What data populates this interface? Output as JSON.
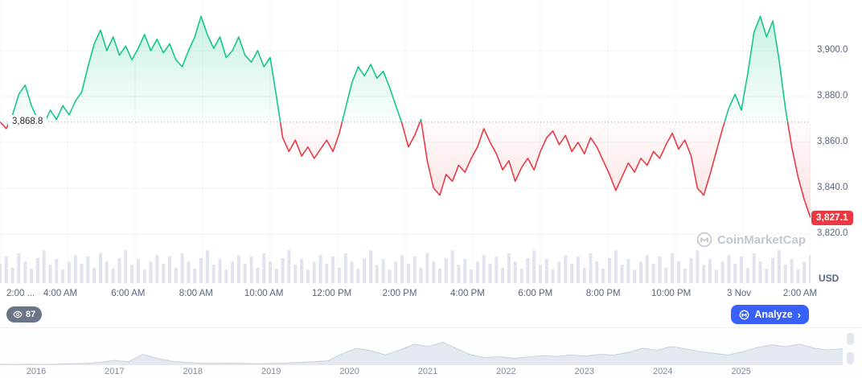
{
  "watermark": {
    "text": "CoinMarketCap"
  },
  "toolbar": {
    "watch_count": "87",
    "analyze_label": "Analyze",
    "analyze_chevron": "›",
    "analyze_color": "#3861fb"
  },
  "chart_data": {
    "type": "line",
    "title": "Intraday price chart with baseline (up/down shading), volume strip and 2016-2025 range timeline",
    "main": {
      "unit": "USD",
      "baseline": {
        "value": 3868.8,
        "label": "3,868.8"
      },
      "last": {
        "value": 3827.1,
        "label": "3,827.1"
      },
      "ylim": [
        3820,
        3900
      ],
      "grid": true,
      "colors": {
        "up": "#16c784",
        "down": "#ea3943",
        "volume": "#dfe4ee",
        "grid": "#eef1f6",
        "vgrid": "#f3f5f9",
        "baseline_dots": "#98a1b3"
      },
      "y_ticks": [
        {
          "label": "3,900.0",
          "value": 3900
        },
        {
          "label": "3,880.0",
          "value": 3880
        },
        {
          "label": "3,860.0",
          "value": 3860
        },
        {
          "label": "3,840.0",
          "value": 3840
        },
        {
          "label": "3,820.0",
          "value": 3820
        }
      ],
      "x_ticks": [
        "2:00 ...",
        "4:00 AM",
        "6:00 AM",
        "8:00 AM",
        "10:00 AM",
        "12:00 PM",
        "2:00 PM",
        "4:00 PM",
        "6:00 PM",
        "8:00 PM",
        "10:00 PM",
        "3 Nov",
        "2:00 AM"
      ],
      "prices": [
        3869,
        3866,
        3872,
        3881,
        3885,
        3876,
        3870,
        3868,
        3874,
        3870,
        3876,
        3872,
        3878,
        3882,
        3893,
        3903,
        3909,
        3900,
        3906,
        3898,
        3902,
        3896,
        3901,
        3907,
        3900,
        3905,
        3899,
        3903,
        3896,
        3893,
        3900,
        3906,
        3915,
        3907,
        3901,
        3906,
        3897,
        3900,
        3906,
        3898,
        3895,
        3900,
        3893,
        3897,
        3880,
        3862,
        3856,
        3861,
        3854,
        3858,
        3853,
        3857,
        3861,
        3856,
        3864,
        3875,
        3886,
        3893,
        3889,
        3894,
        3888,
        3891,
        3884,
        3876,
        3868,
        3858,
        3863,
        3870,
        3852,
        3840,
        3837,
        3846,
        3843,
        3850,
        3847,
        3853,
        3858,
        3866,
        3860,
        3855,
        3848,
        3852,
        3843,
        3849,
        3853,
        3848,
        3856,
        3862,
        3865,
        3859,
        3863,
        3856,
        3860,
        3855,
        3862,
        3858,
        3852,
        3846,
        3839,
        3845,
        3851,
        3847,
        3853,
        3850,
        3856,
        3853,
        3859,
        3864,
        3857,
        3861,
        3854,
        3840,
        3837,
        3846,
        3856,
        3866,
        3875,
        3881,
        3874,
        3890,
        3908,
        3915,
        3906,
        3913,
        3896,
        3875,
        3858,
        3845,
        3835,
        3827.1
      ],
      "volume": [
        0.4,
        0.55,
        0.32,
        0.62,
        0.45,
        0.3,
        0.52,
        0.68,
        0.38,
        0.5,
        0.28,
        0.44,
        0.58,
        0.4,
        0.55,
        0.32,
        0.62,
        0.45,
        0.3,
        0.52,
        0.68,
        0.38,
        0.5,
        0.28,
        0.44,
        0.58,
        0.4,
        0.55,
        0.32,
        0.62,
        0.45,
        0.3,
        0.52,
        0.68,
        0.38,
        0.5,
        0.28,
        0.44,
        0.58,
        0.4,
        0.55,
        0.32,
        0.62,
        0.45,
        0.3,
        0.52,
        0.68,
        0.38,
        0.5,
        0.28,
        0.44,
        0.58,
        0.4,
        0.55,
        0.32,
        0.62,
        0.45,
        0.3,
        0.52,
        0.68,
        0.38,
        0.5,
        0.28,
        0.44,
        0.58,
        0.4,
        0.55,
        0.32,
        0.62,
        0.45,
        0.3,
        0.52,
        0.68,
        0.38,
        0.5,
        0.28,
        0.44,
        0.58,
        0.4,
        0.55,
        0.32,
        0.62,
        0.45,
        0.3,
        0.52,
        0.68,
        0.38,
        0.5,
        0.28,
        0.44,
        0.58,
        0.4,
        0.55,
        0.32,
        0.62,
        0.45,
        0.3,
        0.52,
        0.68,
        0.38,
        0.5,
        0.28,
        0.44,
        0.58,
        0.4,
        0.55,
        0.32,
        0.62,
        0.45,
        0.3,
        0.52,
        0.68,
        0.38,
        0.5,
        0.28,
        0.44,
        0.58,
        0.4,
        0.55,
        0.32,
        0.62,
        0.45,
        0.3,
        0.52,
        0.68,
        0.38,
        0.5,
        0.28,
        0.44,
        0.58
      ]
    },
    "timeline": {
      "type": "area",
      "years": [
        "2016",
        "2017",
        "2018",
        "2019",
        "2020",
        "2021",
        "2022",
        "2023",
        "2024",
        "2025"
      ],
      "values": [
        0.03,
        0.02,
        0.03,
        0.02,
        0.03,
        0.04,
        0.05,
        0.08,
        0.14,
        0.1,
        0.32,
        0.2,
        0.12,
        0.08,
        0.06,
        0.05,
        0.06,
        0.05,
        0.04,
        0.05,
        0.06,
        0.08,
        0.1,
        0.13,
        0.35,
        0.5,
        0.42,
        0.3,
        0.45,
        0.62,
        0.55,
        0.68,
        0.48,
        0.3,
        0.22,
        0.25,
        0.2,
        0.24,
        0.28,
        0.26,
        0.3,
        0.27,
        0.32,
        0.3,
        0.38,
        0.5,
        0.44,
        0.55,
        0.48,
        0.4,
        0.35,
        0.3,
        0.4,
        0.52,
        0.6,
        0.55,
        0.62,
        0.5,
        0.45,
        0.48
      ],
      "fill": "#e4e9f1",
      "stroke": "#c7d0dd"
    }
  }
}
